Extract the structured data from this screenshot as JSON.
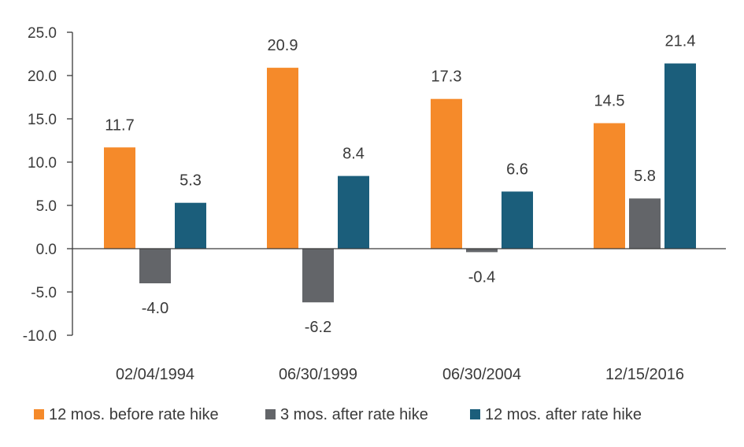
{
  "chart_data": {
    "type": "bar",
    "categories": [
      "02/04/1994",
      "06/30/1999",
      "06/30/2004",
      "12/15/2016"
    ],
    "series": [
      {
        "name": "12 mos. before rate hike",
        "color": "#f58a2a",
        "values": [
          11.7,
          20.9,
          17.3,
          14.5
        ]
      },
      {
        "name": "3 mos. after rate hike",
        "color": "#636569",
        "values": [
          -4.0,
          -6.2,
          -0.4,
          5.8
        ]
      },
      {
        "name": "12 mos. after rate hike",
        "color": "#1b5e7b",
        "values": [
          5.3,
          8.4,
          6.6,
          21.4
        ]
      }
    ],
    "y_ticks": [
      "25.0",
      "20.0",
      "15.0",
      "10.0",
      "5.0",
      "0.0",
      "-5.0",
      "-10.0"
    ],
    "ylim": [
      -10,
      25
    ],
    "title": "",
    "xlabel": "",
    "ylabel": "",
    "grid": false,
    "legend_position": "bottom",
    "data_labels": true
  }
}
